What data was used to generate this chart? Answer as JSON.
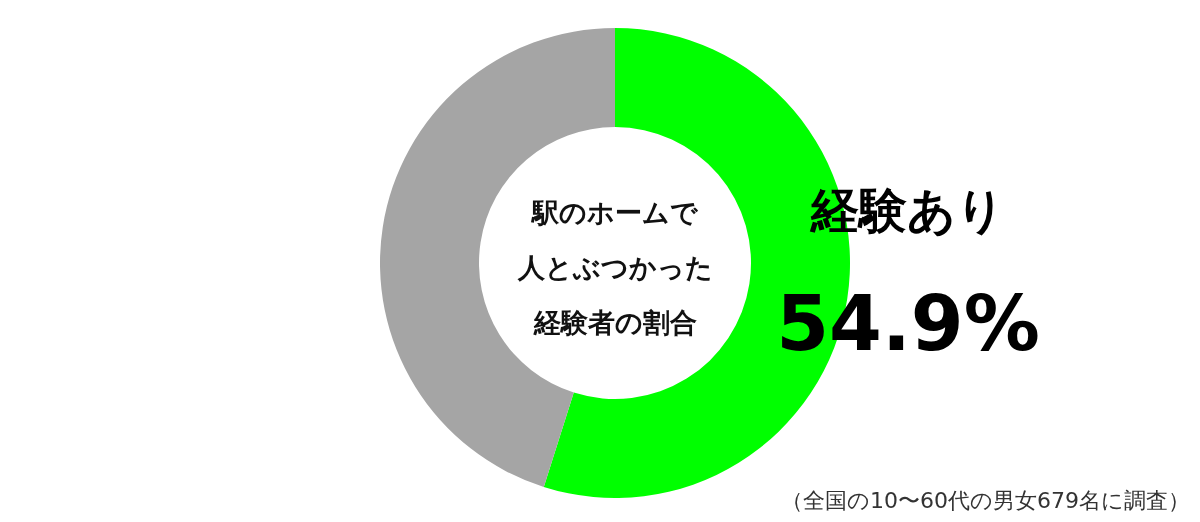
{
  "chart_data": {
    "type": "donut",
    "title": "駅のホームで人とぶつかった経験者の割合",
    "categories": [
      "経験あり",
      null
    ],
    "values": [
      54.9,
      45.1
    ],
    "colors": [
      "#00ff00",
      "#a5a5a5"
    ],
    "value_labels": [
      "54.9%",
      null
    ],
    "legend": false,
    "annotations": [
      "（全国の10〜60代の男女679名に調査）"
    ]
  }
}
